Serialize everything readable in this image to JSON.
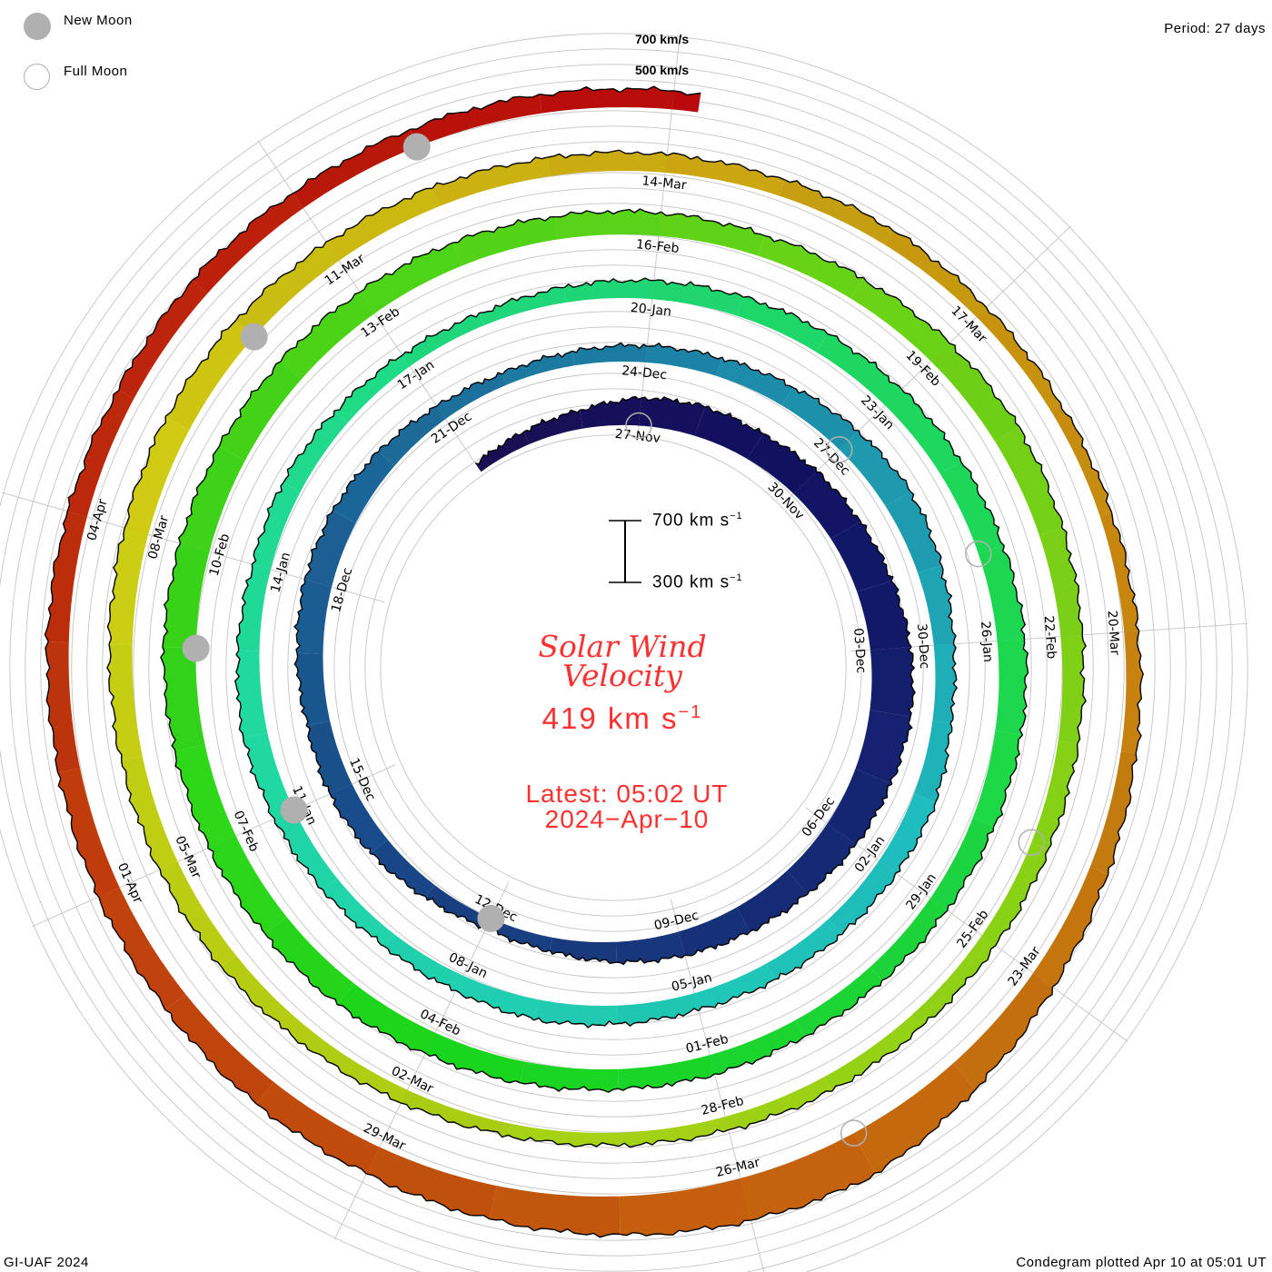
{
  "legend": {
    "new_moon": "New Moon",
    "full_moon": "Full Moon",
    "new_moon_color": "#b0b0b0"
  },
  "period_label": "Period: 27 days",
  "scale_labels": {
    "outer_700": "700 km/s",
    "outer_500": "500 km/s"
  },
  "scale_bar": {
    "top": "700 km s",
    "bottom": "300 km s",
    "exp": "−1"
  },
  "title_line1": "Solar Wind",
  "title_line2": "Velocity",
  "current_value": "419 km s",
  "current_exp": "−1",
  "latest_line1": "Latest: 05:02 UT",
  "latest_line2": "2024−Apr−10",
  "footer_left": "GI-UAF 2024",
  "footer_right": "Condegram plotted Apr 10 at 05:01 UT",
  "chart_data": {
    "type": "condegram-spiral",
    "title": "Solar Wind Velocity",
    "period_days": 27,
    "units": "km/s",
    "start_date": "2023-11-24",
    "end_date": "2024-04-10",
    "baseline_kms": 300,
    "scale_kms": [
      300,
      700
    ],
    "daily_velocity_kms": [
      360,
      390,
      420,
      480,
      500,
      490,
      510,
      520,
      540,
      560,
      570,
      550,
      530,
      500,
      480,
      460,
      430,
      390,
      370,
      400,
      440,
      460,
      450,
      470,
      480,
      470,
      440,
      400,
      380,
      390,
      410,
      420,
      440,
      470,
      490,
      460,
      430,
      420,
      450,
      440,
      430,
      420,
      410,
      420,
      430,
      410,
      400,
      420,
      440,
      460,
      440,
      420,
      430,
      410,
      390,
      380,
      400,
      420,
      430,
      440,
      450,
      460,
      470,
      480,
      470,
      450,
      430,
      420,
      420,
      430,
      430,
      440,
      450,
      470,
      480,
      490,
      500,
      510,
      500,
      490,
      480,
      470,
      460,
      450,
      450,
      440,
      450,
      470,
      480,
      460,
      440,
      430,
      420,
      410,
      400,
      400,
      390,
      380,
      380,
      390,
      400,
      420,
      430,
      440,
      450,
      460,
      470,
      460,
      440,
      430,
      420,
      420,
      410,
      410,
      390,
      380,
      380,
      390,
      400,
      420,
      460,
      520,
      600,
      580,
      550,
      520,
      490,
      480,
      460,
      450,
      440,
      440,
      430,
      420,
      430,
      420,
      420,
      420,
      419
    ],
    "date_labels": [
      "27-Nov",
      "30-Nov",
      "03-Dec",
      "06-Dec",
      "09-Dec",
      "12-Dec",
      "15-Dec",
      "18-Dec",
      "21-Dec",
      "24-Dec",
      "27-Dec",
      "30-Dec",
      "02-Jan",
      "05-Jan",
      "08-Jan",
      "11-Jan",
      "14-Jan",
      "17-Jan",
      "20-Jan",
      "23-Jan",
      "26-Jan",
      "29-Jan",
      "01-Feb",
      "04-Feb",
      "07-Feb",
      "10-Feb",
      "13-Feb",
      "16-Feb",
      "19-Feb",
      "22-Feb",
      "25-Feb",
      "28-Feb",
      "02-Mar",
      "05-Mar",
      "08-Mar",
      "11-Mar",
      "14-Mar",
      "17-Mar",
      "20-Mar",
      "23-Mar",
      "26-Mar",
      "29-Mar",
      "01-Apr",
      "04-Apr"
    ],
    "new_moons": [
      "2023-12-12",
      "2024-01-11",
      "2024-02-09",
      "2024-03-10",
      "2024-04-08"
    ],
    "full_moons": [
      "2023-11-27",
      "2023-12-27",
      "2024-01-25",
      "2024-02-24",
      "2024-03-25"
    ]
  }
}
